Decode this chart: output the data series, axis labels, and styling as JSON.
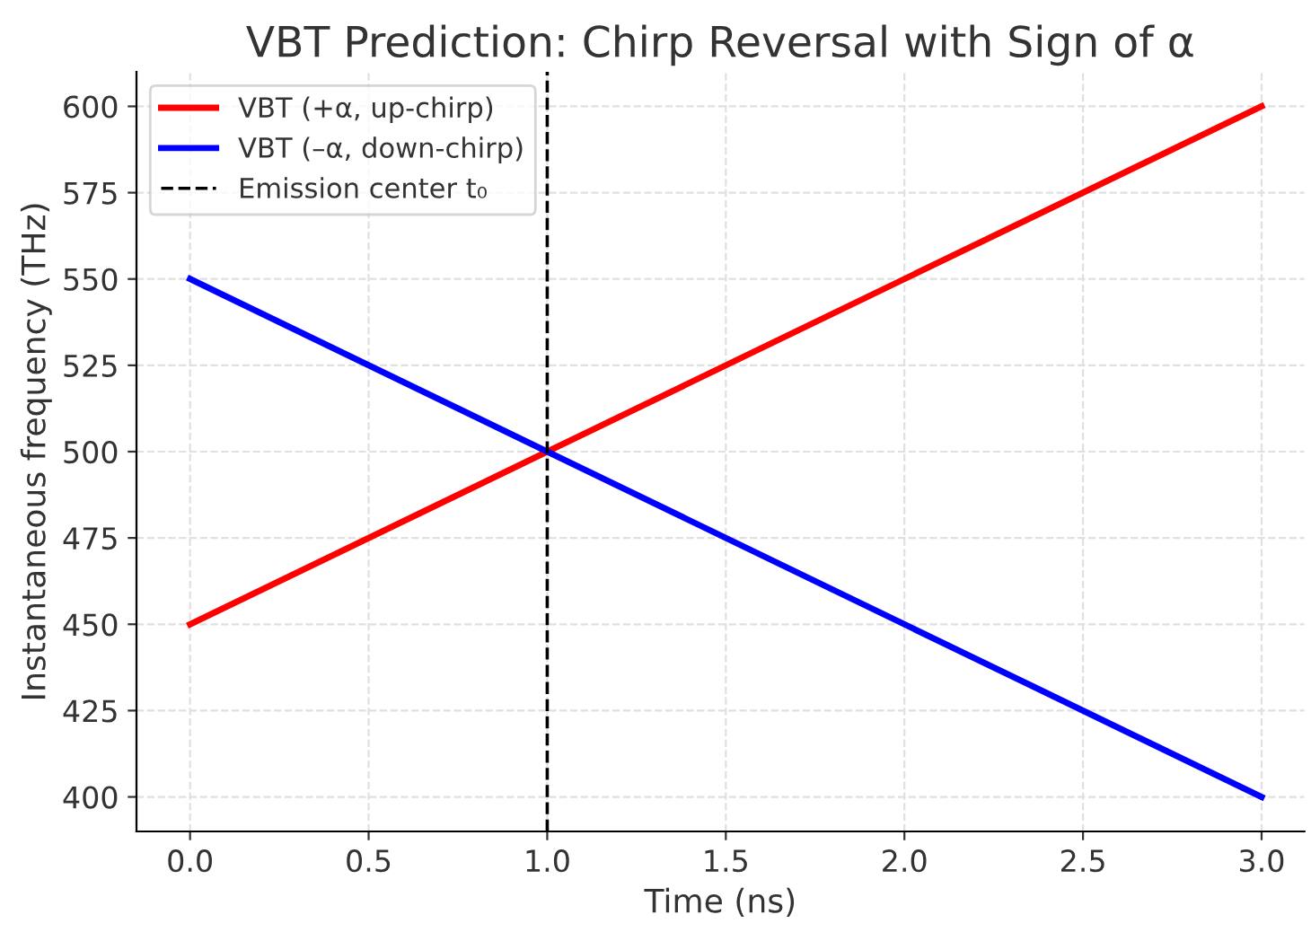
{
  "chart_data": {
    "type": "line",
    "title": "VBT Prediction: Chirp Reversal with Sign of α",
    "xlabel": "Time (ns)",
    "ylabel": "Instantaneous frequency (THz)",
    "x": [
      0,
      3
    ],
    "series": [
      {
        "name": "VBT (+α, up-chirp)",
        "color": "#ff0000",
        "values": [
          450,
          600
        ]
      },
      {
        "name": "VBT (–α, down-chirp)",
        "color": "#0000ff",
        "values": [
          550,
          400
        ]
      }
    ],
    "ref_lines": [
      {
        "axis": "x",
        "value": 1.0,
        "label": "Emission center t₀",
        "color": "#000000",
        "line_style": "dashed"
      }
    ],
    "xlim": [
      -0.15,
      3.12
    ],
    "ylim": [
      390,
      610
    ],
    "xticks": [
      {
        "value": 0,
        "label": "0.0"
      },
      {
        "value": 0.5,
        "label": "0.5"
      },
      {
        "value": 1,
        "label": "1.0"
      },
      {
        "value": 1.5,
        "label": "1.5"
      },
      {
        "value": 2,
        "label": "2.0"
      },
      {
        "value": 2.5,
        "label": "2.5"
      },
      {
        "value": 3,
        "label": "3.0"
      }
    ],
    "yticks": [
      400,
      425,
      450,
      475,
      500,
      525,
      550,
      575,
      600
    ],
    "grid": true,
    "legend": "top left",
    "line_style": "solid",
    "marker": "none"
  }
}
